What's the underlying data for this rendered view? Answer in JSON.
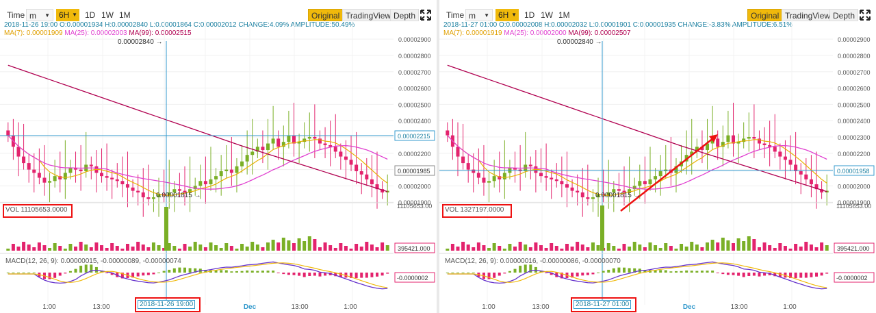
{
  "panels": [
    {
      "toolbar": {
        "time": "Time",
        "m": "m",
        "interval": "6H",
        "d1": "1D",
        "w1": "1W",
        "mo1": "1M",
        "original": "Original",
        "tradingview": "TradingView",
        "depth": "Depth"
      },
      "ohlc_line": "2018-11-26 19:00  O:0.00001934 H:0.00002840 L:0.00001864 C:0.00002012 CHANGE:4.09% AMPLITUDE:50.49%",
      "ma7": "MA(7): 0.00001909",
      "ma25": "MA(25): 0.00002003",
      "ma99": "MA(99): 0.00002515",
      "high_label": "0.00002840",
      "low_label": "0.00001815",
      "price_current": "0.00002215",
      "price_last": "0.00001985",
      "vol_label": "VOL 11105653.0000",
      "vol_axis_top": "11105653.00",
      "vol_axis_val": "395421.000",
      "macd_label": "MACD(12, 26, 9): 0.00000015, -0.00000089, -0.00000074",
      "macd_axis_val": "-0.0000002",
      "crosshair_date": "2018-11-26 19:00",
      "x_ticks": [
        "1:00",
        "13:00",
        "1:00",
        "Dec",
        "13:00",
        "1:00"
      ]
    },
    {
      "toolbar": {
        "time": "Time",
        "m": "m",
        "interval": "6H",
        "d1": "1D",
        "w1": "1W",
        "mo1": "1M",
        "original": "Original",
        "tradingview": "TradingView",
        "depth": "Depth"
      },
      "ohlc_line": "2018-11-27 01:00  O:0.00002008 H:0.00002032 L:0.00001901 C:0.00001935 CHANGE:-3.83% AMPLITUDE:6.51%",
      "ma7": "MA(7): 0.00001919",
      "ma25": "MA(25): 0.00002000",
      "ma99": "MA(99): 0.00002507",
      "high_label": "0.00002840",
      "low_label": "0.00001815",
      "price_current": "0.00001958",
      "price_last": "",
      "vol_label": "VOL 1327197.0000",
      "vol_axis_top": "11105653.00",
      "vol_axis_val": "395421.000",
      "macd_label": "MACD(12, 26, 9): 0.00000016, -0.00000086, -0.00000070",
      "macd_axis_val": "-0.0000002",
      "crosshair_date": "2018-11-27 01:00",
      "x_ticks": [
        "1:00",
        "13:00",
        "1:00",
        "Dec",
        "13:00",
        "1:00"
      ]
    }
  ],
  "chart_data": {
    "type": "line",
    "note_series": "candlestick",
    "y_ticks": [
      "0.00002900",
      "0.00002800",
      "0.00002700",
      "0.00002600",
      "0.00002500",
      "0.00002400",
      "0.00002300",
      "0.00002200",
      "0.00002100",
      "0.00002000",
      "0.00001900"
    ],
    "ylim": [
      1.88e-05,
      2.93e-05
    ],
    "close": [
      2.31e-05,
      2.24e-05,
      2.18e-05,
      2.14e-05,
      2.1e-05,
      2.08e-05,
      2.05e-05,
      2.02e-05,
      2.03e-05,
      2.06e-05,
      2.04e-05,
      2.08e-05,
      2.11e-05,
      2.1e-05,
      2.09e-05,
      2.13e-05,
      2.12e-05,
      2.08e-05,
      2.06e-05,
      2.05e-05,
      2.04e-05,
      2.03e-05,
      2.01e-05,
      1.99e-05,
      1.97e-05,
      1.96e-05,
      1.93e-05,
      1.92e-05,
      1.93e-05,
      1.95e-05,
      1.94e-05,
      1.96e-05,
      1.98e-05,
      1.97e-05,
      1.96e-05,
      1.98e-05,
      2e-05,
      2.03e-05,
      2.01e-05,
      2.04e-05,
      2.06e-05,
      2.09e-05,
      2.1e-05,
      2.08e-05,
      2.12e-05,
      2.15e-05,
      2.19e-05,
      2.21e-05,
      2.24e-05,
      2.22e-05,
      2.26e-05,
      2.29e-05,
      2.24e-05,
      2.27e-05,
      2.31e-05,
      2.26e-05,
      2.27e-05,
      2.29e-05,
      2.3e-05,
      2.29e-05,
      2.26e-05,
      2.25e-05,
      2.24e-05,
      2.21e-05,
      2.18e-05,
      2.16e-05,
      2.13e-05,
      2.09e-05,
      2.07e-05,
      2.04e-05,
      2.01e-05,
      1.98e-05,
      1.96e-05,
      1.97e-05
    ],
    "colors": {
      "up": "#7aaf26",
      "down": "#e3236d",
      "ma7": "#e8b000",
      "ma25": "#e040d0",
      "ma99": "#b00050",
      "crosshair": "#3399cc",
      "dif": "#6633cc",
      "dea": "#f0b90b"
    }
  }
}
